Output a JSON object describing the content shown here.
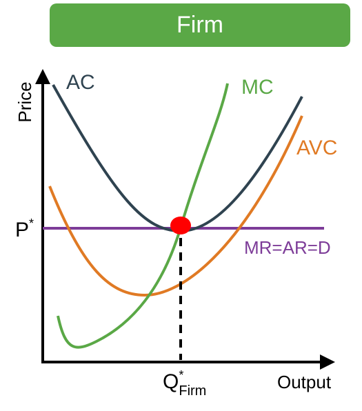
{
  "banner": {
    "title": "Firm"
  },
  "axes": {
    "y_label": "Price",
    "x_label": "Output",
    "p_label": "P",
    "p_sup": "*",
    "q_label": "Q",
    "q_sup": "*",
    "q_sub": "Firm"
  },
  "curves": {
    "ac": {
      "label": "AC",
      "color": "#2f4350"
    },
    "mc": {
      "label": "MC",
      "color": "#5aa846"
    },
    "avc": {
      "label": "AVC",
      "color": "#e07a24"
    },
    "mr": {
      "label": "MR=AR=D",
      "color": "#7d3c98"
    }
  },
  "equilibrium": {
    "color": "#ff0000"
  }
}
